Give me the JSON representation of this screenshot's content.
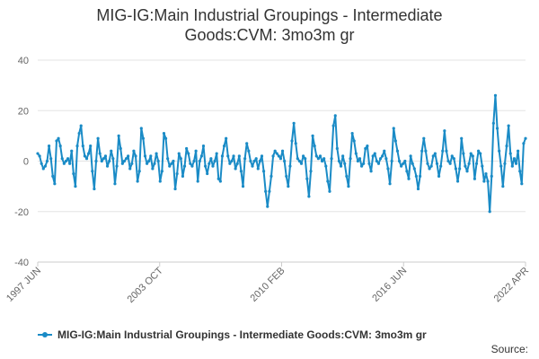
{
  "chart_data": {
    "type": "line",
    "title_line1": "MIG-IG:Main Industrial Groupings - Intermediate",
    "title_line2": "Goods:CVM: 3mo3m gr",
    "xlabel": "",
    "ylabel": "",
    "ylim": [
      -40,
      40
    ],
    "y_ticks": [
      40,
      20,
      0,
      -20,
      -40
    ],
    "x_tick_labels": [
      "1997 JUN",
      "2003 OCT",
      "2010 FEB",
      "2016 JUN",
      "2022 APR"
    ],
    "x_range": [
      "1997-06",
      "2022-04"
    ],
    "grid": "horizontal",
    "legend_position": "bottom",
    "series": [
      {
        "name": "MIG-IG:Main Industrial Groupings - Intermediate Goods:CVM: 3mo3m gr",
        "color": "#1a8bc6",
        "x_start": "1997-06",
        "x_step": "1 month",
        "values": [
          3.0,
          2.0,
          -1.0,
          -3.0,
          -2.0,
          0.0,
          6.0,
          1.0,
          -6.0,
          -9.0,
          8.0,
          9.0,
          6.0,
          1.0,
          -1.0,
          0.0,
          1.0,
          -1.0,
          4.0,
          -5.0,
          -10.0,
          6.0,
          11.0,
          14.0,
          6.0,
          2.0,
          1.0,
          3.0,
          6.0,
          -4.0,
          -11.0,
          0.0,
          9.0,
          3.0,
          0.0,
          1.0,
          2.0,
          -2.0,
          0.0,
          4.0,
          1.0,
          -9.0,
          -2.0,
          10.0,
          5.0,
          -1.0,
          0.0,
          1.0,
          2.0,
          -3.0,
          -1.0,
          4.0,
          2.0,
          -8.0,
          -4.0,
          13.0,
          9.0,
          2.0,
          -1.0,
          0.0,
          2.0,
          -3.0,
          -1.0,
          3.0,
          0.0,
          -8.0,
          -4.0,
          11.0,
          9.0,
          1.0,
          -2.0,
          -1.0,
          0.0,
          -11.0,
          -5.0,
          3.0,
          1.0,
          -6.0,
          -2.0,
          5.0,
          3.0,
          -1.0,
          -2.0,
          0.0,
          4.0,
          -8.0,
          0.0,
          2.0,
          6.0,
          -2.0,
          -5.0,
          -1.0,
          1.0,
          -2.0,
          0.0,
          3.0,
          -7.0,
          -8.0,
          2.0,
          6.0,
          9.0,
          2.0,
          -1.0,
          0.0,
          2.0,
          -3.0,
          -1.0,
          2.0,
          -4.0,
          -10.0,
          1.0,
          7.0,
          4.0,
          0.0,
          -2.0,
          0.0,
          1.0,
          -3.0,
          0.0,
          2.0,
          -4.0,
          -12.0,
          -18.0,
          -12.0,
          -6.0,
          2.0,
          4.0,
          3.0,
          2.0,
          1.0,
          4.0,
          0.0,
          -6.0,
          -10.0,
          -2.0,
          8.0,
          15.0,
          7.0,
          1.0,
          0.0,
          -1.0,
          2.0,
          1.0,
          -7.0,
          -14.0,
          -4.0,
          10.0,
          6.0,
          2.0,
          1.0,
          2.0,
          0.0,
          1.0,
          -2.0,
          -8.0,
          -12.0,
          1.0,
          14.0,
          18.0,
          5.0,
          0.0,
          -2.0,
          2.0,
          -1.0,
          -6.0,
          -10.0,
          1.0,
          11.0,
          8.0,
          3.0,
          0.0,
          1.0,
          -2.0,
          -1.0,
          5.0,
          6.0,
          -1.0,
          -4.0,
          2.0,
          3.0,
          0.0,
          -1.0,
          1.0,
          2.0,
          4.0,
          1.0,
          -3.0,
          -9.0,
          0.0,
          13.0,
          8.0,
          4.0,
          0.0,
          -2.0,
          -1.0,
          0.0,
          -4.0,
          -7.0,
          2.0,
          -1.0,
          -3.0,
          -6.0,
          -11.0,
          -6.0,
          4.0,
          9.0,
          4.0,
          -1.0,
          -3.0,
          -2.0,
          2.0,
          3.0,
          -1.0,
          -6.0,
          -2.0,
          4.0,
          12.0,
          4.0,
          0.0,
          -1.0,
          2.0,
          1.0,
          -3.0,
          -8.0,
          -3.0,
          9.0,
          3.0,
          -2.0,
          -4.0,
          -1.0,
          3.0,
          2.0,
          -7.0,
          -1.0,
          4.0,
          3.0,
          -2.0,
          -8.0,
          -5.0,
          -8.0,
          -20.0,
          -6.0,
          15.0,
          26.0,
          13.0,
          4.0,
          -2.0,
          -10.0,
          -1.0,
          6.0,
          14.0,
          3.0,
          -2.0,
          1.0,
          -1.0,
          4.0,
          -4.0,
          -9.0,
          7.0,
          9.0
        ]
      }
    ]
  },
  "footer": {
    "source_label": "Source:"
  }
}
